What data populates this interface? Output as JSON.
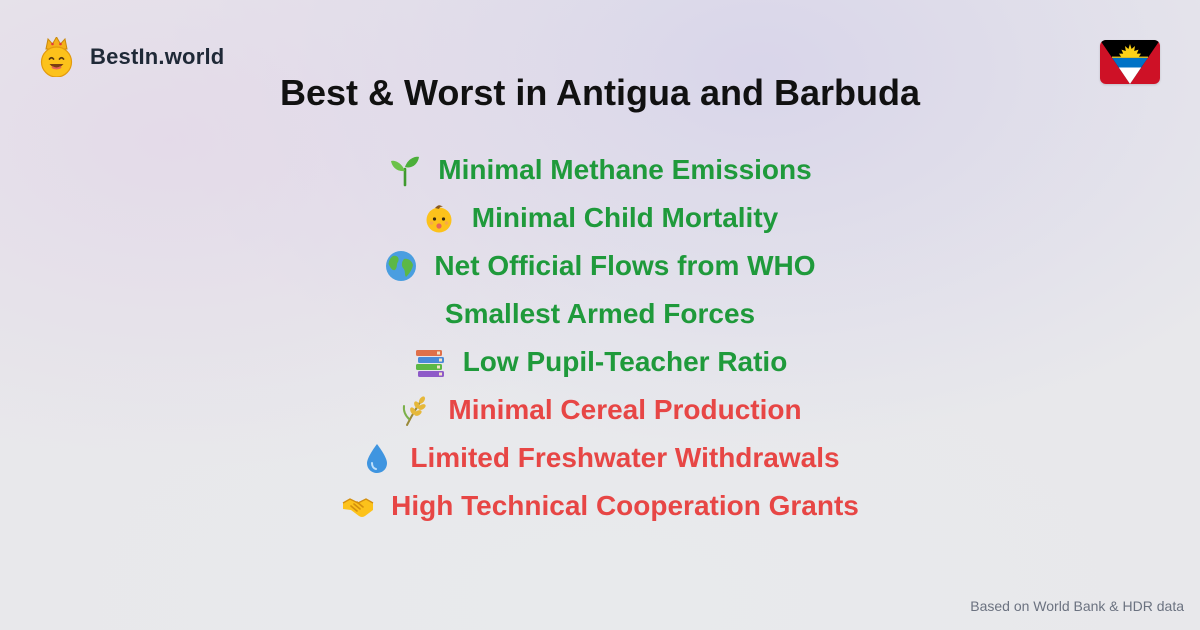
{
  "brand": {
    "name": "BestIn.world",
    "logo_icon": "crown-smiley-icon"
  },
  "flag": {
    "country": "Antigua and Barbuda",
    "colors": [
      "#000000",
      "#0072c6",
      "#ffffff",
      "#ce1126",
      "#fcd116"
    ]
  },
  "title": "Best & Worst in Antigua and Barbuda",
  "items": [
    {
      "label": "Minimal Methane Emissions",
      "icon": "seedling-icon",
      "kind": "best"
    },
    {
      "label": "Minimal Child Mortality",
      "icon": "baby-icon",
      "kind": "best"
    },
    {
      "label": "Net Official Flows from WHO",
      "icon": "globe-icon",
      "kind": "best"
    },
    {
      "label": "Smallest Armed Forces",
      "icon": "",
      "kind": "best"
    },
    {
      "label": "Low Pupil-Teacher Ratio",
      "icon": "books-icon",
      "kind": "best"
    },
    {
      "label": "Minimal Cereal Production",
      "icon": "wheat-icon",
      "kind": "worst"
    },
    {
      "label": "Limited Freshwater Withdrawals",
      "icon": "droplet-icon",
      "kind": "worst"
    },
    {
      "label": "High Technical Cooperation Grants",
      "icon": "handshake-icon",
      "kind": "worst"
    }
  ],
  "colors": {
    "best": "#1f9a3b",
    "worst": "#e74645"
  },
  "source": "Based on World Bank & HDR data"
}
